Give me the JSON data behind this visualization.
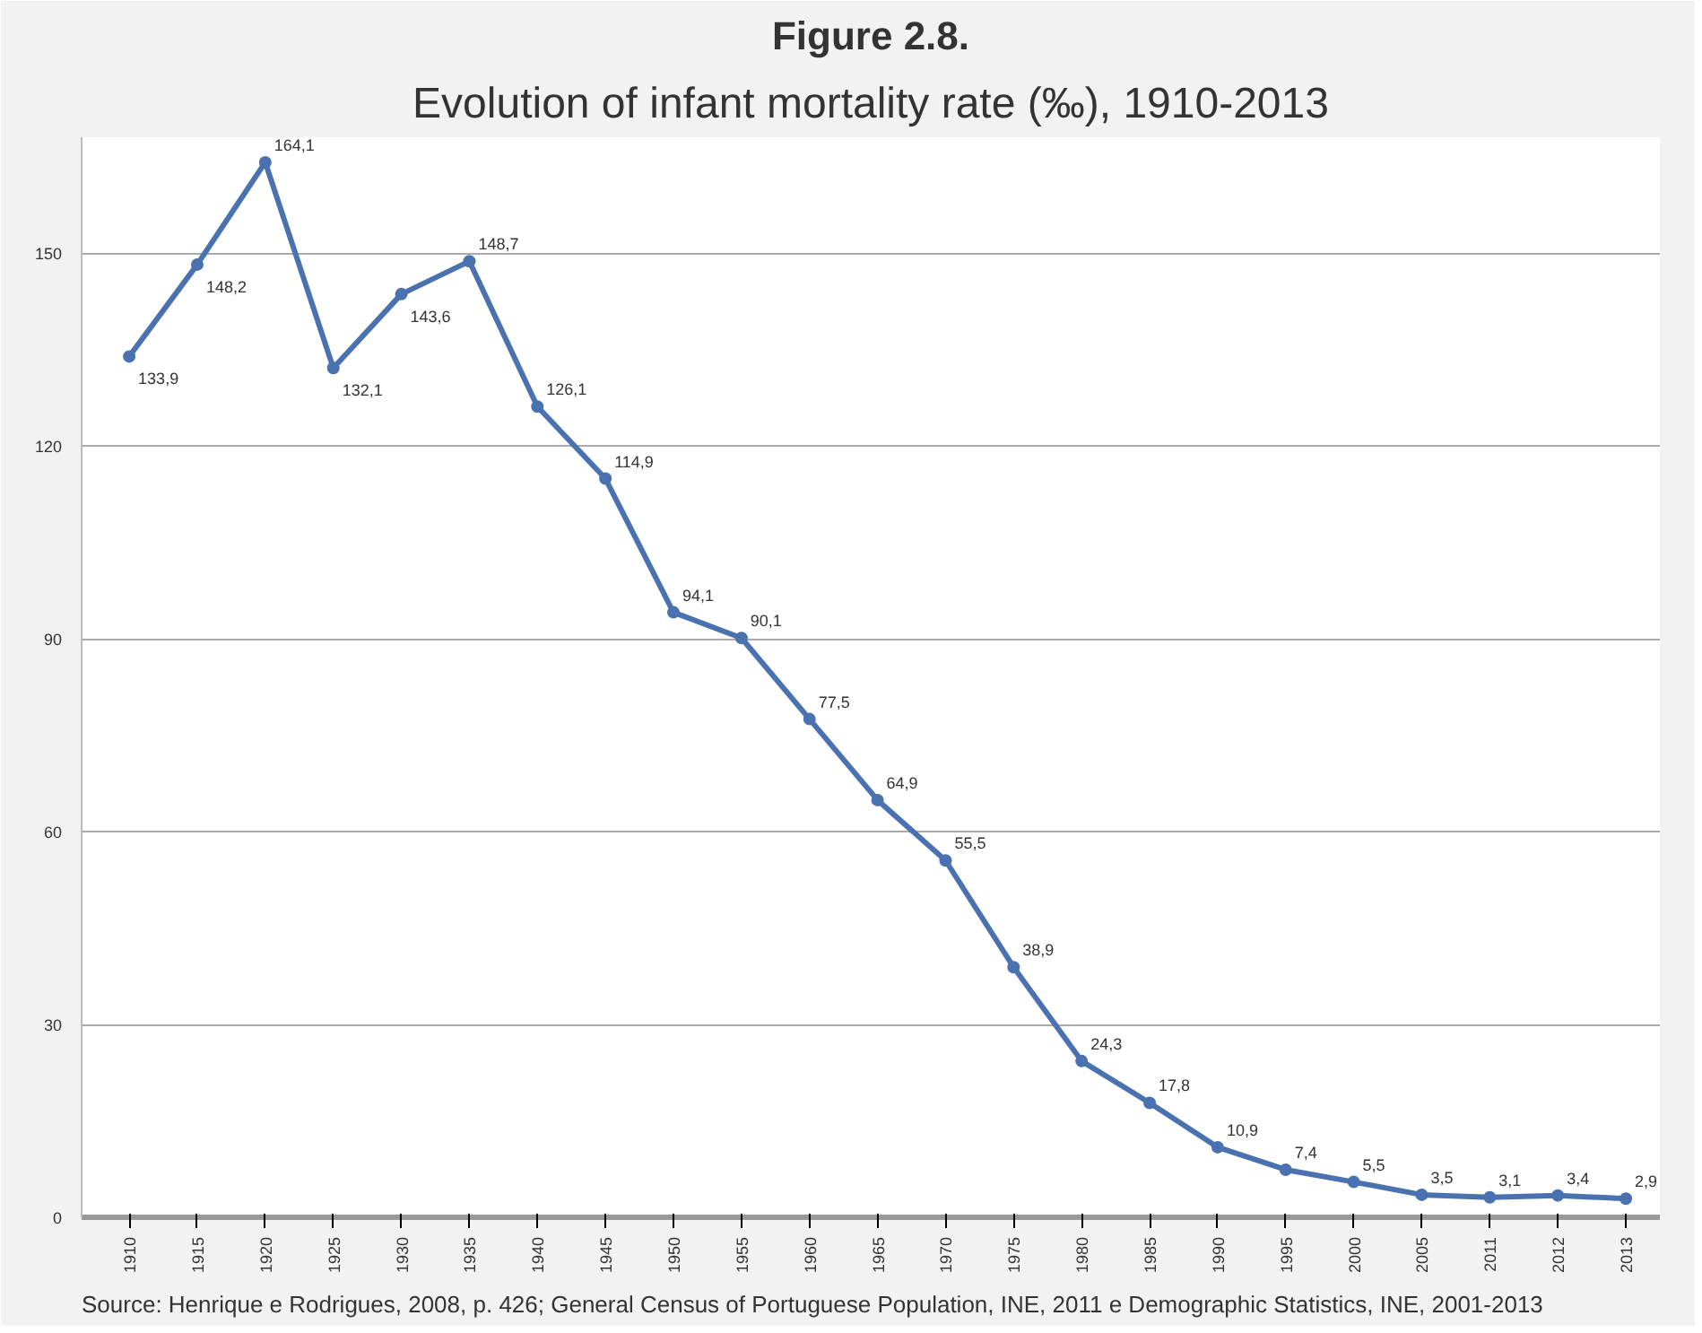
{
  "chart_data": {
    "type": "line",
    "title": "Figure 2.8.",
    "subtitle": "Evolution of infant mortality rate (‰), 1910-2013",
    "categories": [
      "1910",
      "1915",
      "1920",
      "1925",
      "1930",
      "1935",
      "1940",
      "1945",
      "1950",
      "1955",
      "1960",
      "1965",
      "1970",
      "1975",
      "1980",
      "1985",
      "1990",
      "1995",
      "2000",
      "2005",
      "2011",
      "2012",
      "2013"
    ],
    "values": [
      133.9,
      148.2,
      164.1,
      132.1,
      143.6,
      148.7,
      126.1,
      114.9,
      94.1,
      90.1,
      77.5,
      64.9,
      55.5,
      38.9,
      24.3,
      17.8,
      10.9,
      7.4,
      5.5,
      3.5,
      3.1,
      3.4,
      2.9
    ],
    "value_labels": [
      "133,9",
      "148,2",
      "164,1",
      "132,1",
      "143,6",
      "148,7",
      "126,1",
      "114,9",
      "94,1",
      "90,1",
      "77,5",
      "64,9",
      "55,5",
      "38,9",
      "24,3",
      "17,8",
      "10,9",
      "7,4",
      "5,5",
      "3,5",
      "3,1",
      "3,4",
      "2,9"
    ],
    "color": "#4a72b0",
    "marker": "circle",
    "line_style": "solid",
    "grid": "y",
    "ylim": [
      0,
      168
    ],
    "yticks": [
      0,
      30,
      60,
      90,
      120,
      150
    ],
    "annotations": [
      "Source: Henrique e Rodrigues, 2008, p. 426; General Census of Portuguese Population, INE, 2011 e Demographic Statistics, INE, 2001-2013"
    ]
  }
}
